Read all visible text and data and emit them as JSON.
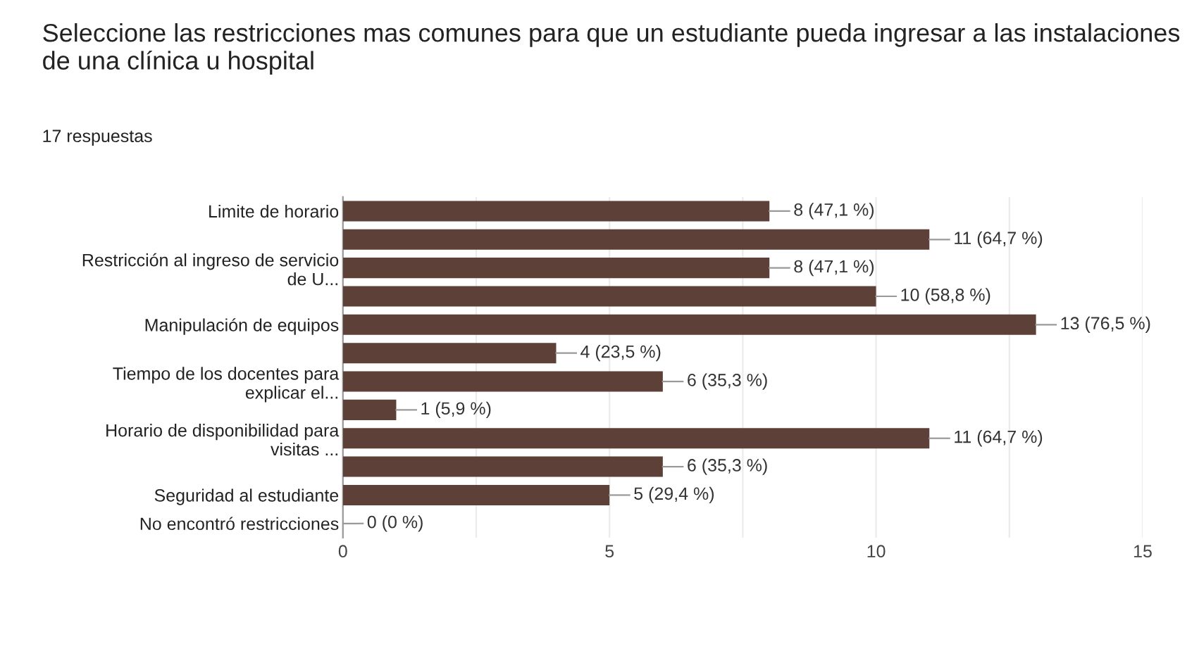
{
  "chart_data": {
    "type": "bar",
    "orientation": "horizontal",
    "title": "Seleccione las restricciones mas comunes para que un estudiante pueda ingresar a las instalaciones de una clínica u hospital",
    "subtitle": "17 respuestas",
    "categories": [
      "Limite de horario",
      null,
      "Restricción al ingreso de servicio\nde U...",
      null,
      "Manipulación de equipos",
      null,
      "Tiempo de los docentes para\nexplicar el...",
      null,
      "Horario de disponibilidad para\nvisitas ...",
      null,
      "Seguridad al estudiante",
      "No encontró restricciones"
    ],
    "values": [
      8,
      11,
      8,
      10,
      13,
      4,
      6,
      1,
      11,
      6,
      5,
      0
    ],
    "value_labels": [
      "8 (47,1 %)",
      "11 (64,7 %)",
      "8 (47,1 %)",
      "10 (58,8 %)",
      "13 (76,5 %)",
      "4 (23,5 %)",
      "6 (35,3 %)",
      "1 (5,9 %)",
      "11 (64,7 %)",
      "6 (35,3 %)",
      "5 (29,4 %)",
      "0 (0 %)"
    ],
    "color": "#5d4037",
    "xlim": [
      0,
      15
    ],
    "xticks": [
      0,
      {
        "value": 2.5,
        "label": null
      },
      5,
      {
        "value": 7.5,
        "label": null
      },
      10,
      {
        "value": 12.5,
        "label": null
      },
      15
    ],
    "grid": "x",
    "legend": false
  }
}
